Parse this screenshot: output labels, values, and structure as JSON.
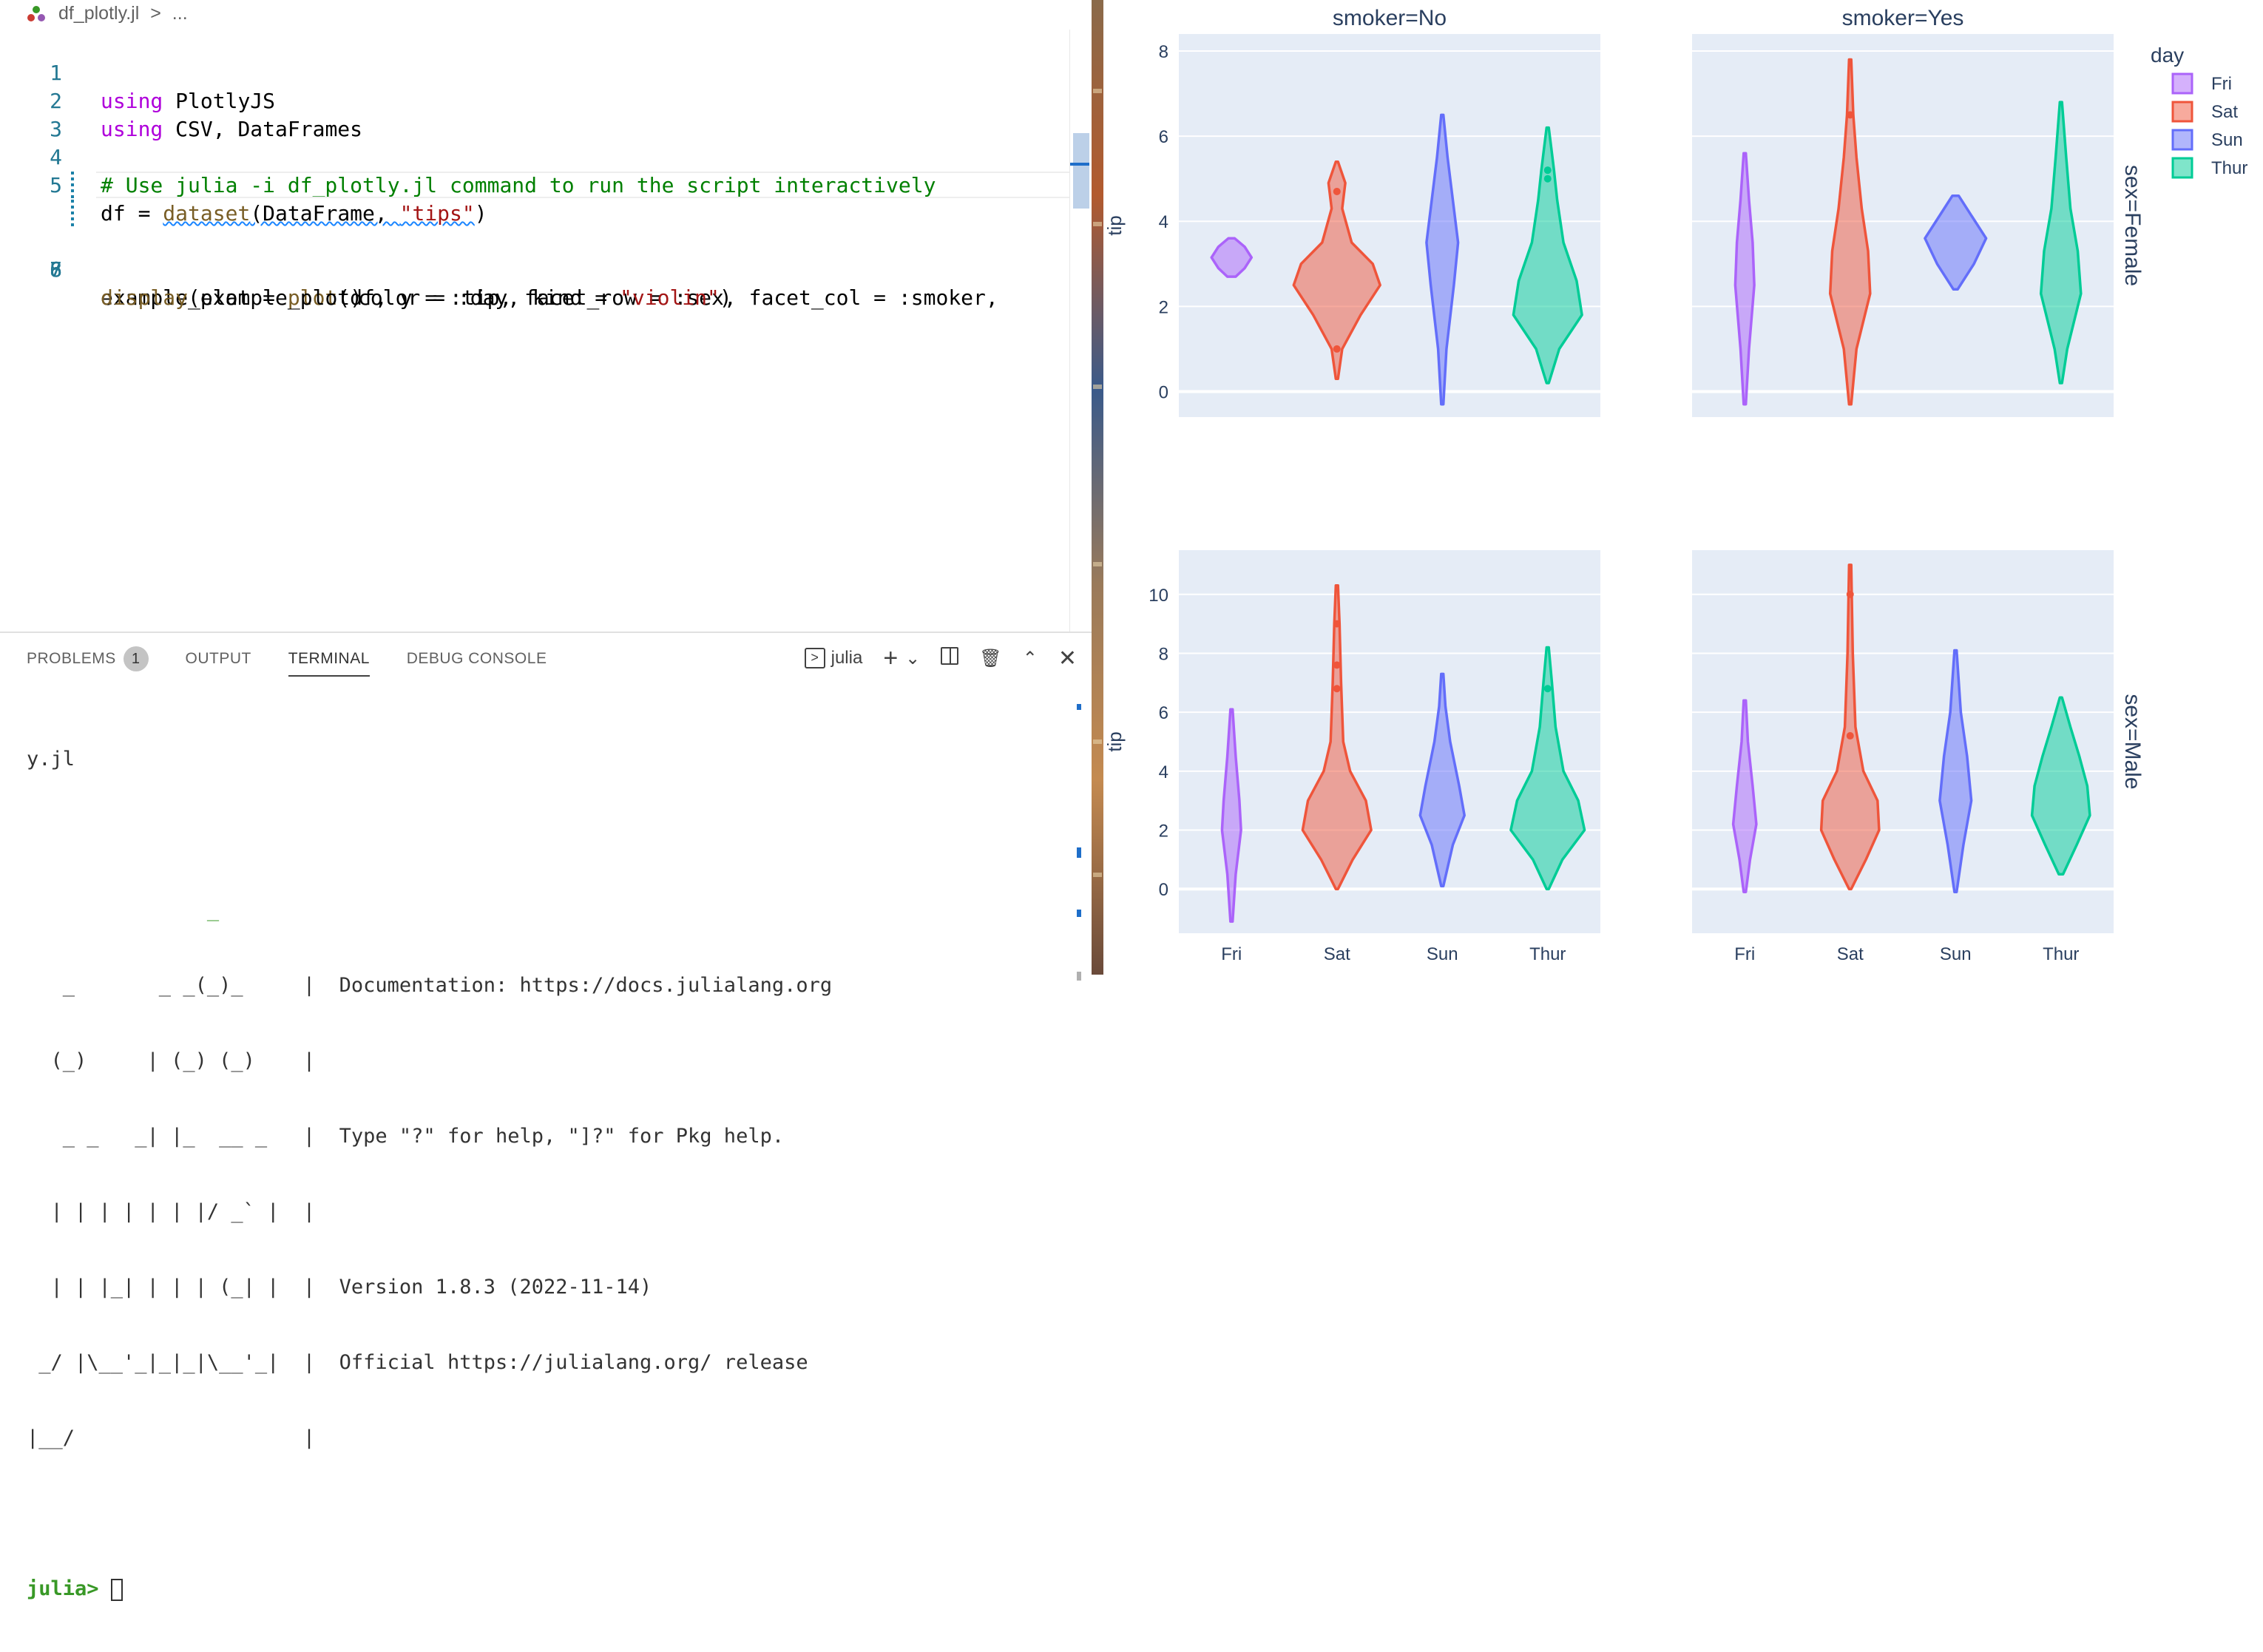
{
  "breadcrumb": {
    "file": "df_plotly.jl",
    "sep": ">",
    "rest": "..."
  },
  "editor": {
    "lines": [
      {
        "num": "1"
      },
      {
        "num": "2"
      },
      {
        "num": "3"
      },
      {
        "num": "4"
      },
      {
        "num": "5"
      },
      {
        "num": "6"
      },
      {
        "num": "7"
      },
      {
        "num": "8"
      }
    ],
    "l1": {
      "kw": "using",
      "rest": " PlotlyJS"
    },
    "l2": {
      "kw": "using",
      "rest": " CSV, DataFrames"
    },
    "l4": {
      "comment": "# Use julia -i df_plotly.jl command to run the script interactively"
    },
    "l5": {
      "a": "df = ",
      "fn": "dataset",
      "b": "(DataFrame, ",
      "str": "\"tips\"",
      "c": ")"
    },
    "l6": {
      "a": "example_plot = ",
      "fn": "plot",
      "b": "(df, y = :tip, facet_row = :sex, facet_col = :smoker,"
    },
    "l7": {
      "a": "                     color = :day, kind = ",
      "str": "\"violin\"",
      "c": ")"
    },
    "l8": {
      "fn": "display",
      "b": "(example_plot)"
    }
  },
  "panel": {
    "tabs": {
      "problems": "PROBLEMS",
      "problems_count": "1",
      "output": "OUTPUT",
      "terminal": "TERMINAL",
      "debug": "DEBUG CONSOLE"
    },
    "terminal_name": "julia",
    "icons": [
      "terminal-icon",
      "add-icon",
      "chevron-down-icon",
      "split-icon",
      "trash-icon",
      "maximize-icon",
      "close-icon"
    ]
  },
  "terminal": {
    "line0": "y.jl",
    "banner": [
      "               _",
      "   _       _ _(_)_     |  Documentation: https://docs.julialang.org",
      "  (_)     | (_) (_)    |",
      "   _ _   _| |_  __ _   |  Type \"?\" for help, \"]?\" for Pkg help.",
      "  | | | | | | |/ _` |  |",
      "  | | |_| | | | (_| |  |  Version 1.8.3 (2022-11-14)",
      " _/ |\\__'_|_|_|\\__'_|  |  Official https://julialang.org/ release",
      "|__/                   |"
    ],
    "prompt": "julia>"
  },
  "chart_data": {
    "type": "violin",
    "categories": [
      "Fri",
      "Sat",
      "Sun",
      "Thur"
    ],
    "facet_col_titles": [
      "smoker=No",
      "smoker=Yes"
    ],
    "facet_row_titles": [
      "sex=Female",
      "sex=Male"
    ],
    "ylabel": "tip",
    "legend": {
      "title": "day",
      "entries": [
        "Fri",
        "Sat",
        "Sun",
        "Thur"
      ],
      "placement": "top-right"
    },
    "colors": {
      "Fri": "#ab63fa",
      "Sat": "#ef553b",
      "Sun": "#636efa",
      "Thur": "#00cc96"
    },
    "panels": [
      {
        "row": "Female",
        "col": "No",
        "ylim": [
          -0.6,
          8.4
        ],
        "yticks": [
          0,
          2,
          4,
          6,
          8
        ],
        "violins": [
          {
            "day": "Fri",
            "min": 2.7,
            "max": 3.6,
            "profile": [
              [
                2.7,
                0.08
              ],
              [
                2.9,
                0.25
              ],
              [
                3.15,
                0.38
              ],
              [
                3.4,
                0.25
              ],
              [
                3.6,
                0.06
              ]
            ],
            "points": []
          },
          {
            "day": "Sat",
            "min": 0.3,
            "max": 5.4,
            "profile": [
              [
                0.3,
                0.02
              ],
              [
                1.0,
                0.1
              ],
              [
                1.8,
                0.45
              ],
              [
                2.5,
                0.82
              ],
              [
                3.0,
                0.68
              ],
              [
                3.5,
                0.28
              ],
              [
                4.3,
                0.1
              ],
              [
                4.9,
                0.16
              ],
              [
                5.4,
                0.02
              ]
            ],
            "points": [
              4.7,
              1.0
            ]
          },
          {
            "day": "Sun",
            "min": -0.3,
            "max": 6.5,
            "profile": [
              [
                -0.3,
                0.02
              ],
              [
                1.0,
                0.08
              ],
              [
                2.5,
                0.22
              ],
              [
                3.5,
                0.3
              ],
              [
                4.5,
                0.2
              ],
              [
                5.5,
                0.1
              ],
              [
                6.5,
                0.02
              ]
            ],
            "points": []
          },
          {
            "day": "Thur",
            "min": 0.2,
            "max": 6.2,
            "profile": [
              [
                0.2,
                0.02
              ],
              [
                1.0,
                0.22
              ],
              [
                1.8,
                0.65
              ],
              [
                2.6,
                0.55
              ],
              [
                3.5,
                0.3
              ],
              [
                4.5,
                0.18
              ],
              [
                5.2,
                0.12
              ],
              [
                5.6,
                0.08
              ],
              [
                6.2,
                0.02
              ]
            ],
            "points": [
              5.2,
              5.0
            ]
          }
        ]
      },
      {
        "row": "Female",
        "col": "Yes",
        "ylim": [
          -0.6,
          8.4
        ],
        "yticks": [
          0,
          2,
          4,
          6,
          8
        ],
        "violins": [
          {
            "day": "Fri",
            "min": -0.3,
            "max": 5.6,
            "profile": [
              [
                -0.3,
                0.02
              ],
              [
                1.0,
                0.08
              ],
              [
                2.5,
                0.18
              ],
              [
                3.5,
                0.15
              ],
              [
                4.5,
                0.08
              ],
              [
                5.6,
                0.02
              ]
            ],
            "points": []
          },
          {
            "day": "Sat",
            "min": -0.3,
            "max": 7.8,
            "profile": [
              [
                -0.3,
                0.02
              ],
              [
                1.0,
                0.12
              ],
              [
                2.3,
                0.38
              ],
              [
                3.3,
                0.34
              ],
              [
                4.3,
                0.22
              ],
              [
                5.5,
                0.12
              ],
              [
                6.5,
                0.06
              ],
              [
                7.8,
                0.02
              ]
            ],
            "points": [
              6.5
            ]
          },
          {
            "day": "Sun",
            "min": 2.4,
            "max": 4.6,
            "profile": [
              [
                2.4,
                0.04
              ],
              [
                3.0,
                0.35
              ],
              [
                3.6,
                0.58
              ],
              [
                4.1,
                0.32
              ],
              [
                4.6,
                0.06
              ]
            ],
            "points": []
          },
          {
            "day": "Thur",
            "min": 0.2,
            "max": 6.8,
            "profile": [
              [
                0.2,
                0.02
              ],
              [
                1.0,
                0.12
              ],
              [
                2.3,
                0.38
              ],
              [
                3.3,
                0.32
              ],
              [
                4.3,
                0.18
              ],
              [
                5.5,
                0.1
              ],
              [
                6.8,
                0.02
              ]
            ],
            "points": []
          }
        ]
      },
      {
        "row": "Male",
        "col": "No",
        "ylim": [
          -1.5,
          11.5
        ],
        "yticks": [
          0,
          2,
          4,
          6,
          8,
          10
        ],
        "violins": [
          {
            "day": "Fri",
            "min": -1.1,
            "max": 6.1,
            "profile": [
              [
                -1.1,
                0.02
              ],
              [
                0.5,
                0.08
              ],
              [
                2.0,
                0.18
              ],
              [
                3.0,
                0.15
              ],
              [
                4.5,
                0.08
              ],
              [
                6.1,
                0.02
              ]
            ],
            "points": []
          },
          {
            "day": "Sat",
            "min": 0,
            "max": 10.3,
            "profile": [
              [
                0,
                0.02
              ],
              [
                1.0,
                0.3
              ],
              [
                2.0,
                0.65
              ],
              [
                3.0,
                0.55
              ],
              [
                4.0,
                0.25
              ],
              [
                5.0,
                0.12
              ],
              [
                7.0,
                0.08
              ],
              [
                9.0,
                0.05
              ],
              [
                10.3,
                0.02
              ]
            ],
            "points": [
              9.0,
              7.6,
              6.8
            ]
          },
          {
            "day": "Sun",
            "min": 0.1,
            "max": 7.3,
            "profile": [
              [
                0.1,
                0.02
              ],
              [
                1.5,
                0.2
              ],
              [
                2.5,
                0.42
              ],
              [
                3.5,
                0.32
              ],
              [
                5.0,
                0.15
              ],
              [
                6.2,
                0.06
              ],
              [
                7.3,
                0.02
              ]
            ],
            "points": []
          },
          {
            "day": "Thur",
            "min": 0,
            "max": 8.2,
            "profile": [
              [
                0,
                0.02
              ],
              [
                1.0,
                0.28
              ],
              [
                2.0,
                0.7
              ],
              [
                3.0,
                0.58
              ],
              [
                4.0,
                0.3
              ],
              [
                5.5,
                0.15
              ],
              [
                7.0,
                0.08
              ],
              [
                8.2,
                0.02
              ]
            ],
            "points": [
              6.8
            ]
          }
        ]
      },
      {
        "row": "Male",
        "col": "Yes",
        "ylim": [
          -1.5,
          11.5
        ],
        "yticks": [
          0,
          2,
          4,
          6,
          8,
          10
        ],
        "violins": [
          {
            "day": "Fri",
            "min": -0.1,
            "max": 6.4,
            "profile": [
              [
                -0.1,
                0.02
              ],
              [
                1.0,
                0.1
              ],
              [
                2.2,
                0.22
              ],
              [
                3.5,
                0.15
              ],
              [
                5.0,
                0.06
              ],
              [
                6.4,
                0.02
              ]
            ],
            "points": []
          },
          {
            "day": "Sat",
            "min": 0,
            "max": 11.0,
            "profile": [
              [
                0,
                0.02
              ],
              [
                1.0,
                0.3
              ],
              [
                2.0,
                0.55
              ],
              [
                3.0,
                0.52
              ],
              [
                4.0,
                0.25
              ],
              [
                5.5,
                0.1
              ],
              [
                8.0,
                0.05
              ],
              [
                11.0,
                0.02
              ]
            ],
            "points": [
              10.0,
              5.2
            ]
          },
          {
            "day": "Sun",
            "min": -0.1,
            "max": 8.1,
            "profile": [
              [
                -0.1,
                0.02
              ],
              [
                1.5,
                0.15
              ],
              [
                3.0,
                0.3
              ],
              [
                4.5,
                0.22
              ],
              [
                6.0,
                0.1
              ],
              [
                8.1,
                0.02
              ]
            ],
            "points": []
          },
          {
            "day": "Thur",
            "min": 0.5,
            "max": 6.5,
            "profile": [
              [
                0.5,
                0.04
              ],
              [
                1.5,
                0.3
              ],
              [
                2.5,
                0.55
              ],
              [
                3.5,
                0.5
              ],
              [
                4.5,
                0.35
              ],
              [
                5.5,
                0.18
              ],
              [
                6.5,
                0.02
              ]
            ],
            "points": []
          }
        ]
      }
    ]
  }
}
